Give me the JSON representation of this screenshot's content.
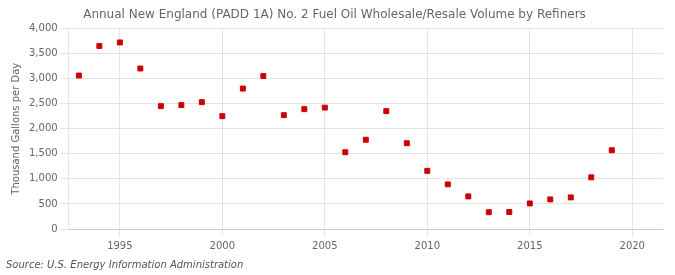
{
  "chart_data": {
    "type": "scatter",
    "title": "Annual New England (PADD 1A) No. 2 Fuel Oil Wholesale/Resale Volume by Refiners",
    "ylabel": "Thousand Gallons per Day",
    "source": "Source: U.S. Energy Information Administration",
    "x": [
      1993,
      1994,
      1995,
      1996,
      1997,
      1998,
      1999,
      2000,
      2001,
      2002,
      2003,
      2004,
      2005,
      2006,
      2007,
      2008,
      2009,
      2010,
      2011,
      2012,
      2013,
      2014,
      2015,
      2016,
      2017,
      2018,
      2019
    ],
    "values": [
      3060,
      3650,
      3720,
      3200,
      2450,
      2470,
      2530,
      2250,
      2800,
      3050,
      2270,
      2390,
      2420,
      1530,
      1780,
      2350,
      1710,
      1160,
      890,
      650,
      335,
      340,
      510,
      590,
      630,
      1030,
      1570
    ],
    "color": "#cc0000",
    "marker": "square",
    "xlim": [
      1992.5,
      2021.5
    ],
    "ylim": [
      0,
      4000
    ],
    "xticks": [
      1995,
      2000,
      2005,
      2010,
      2015,
      2020
    ],
    "yticks": [
      0,
      500,
      {
        "value": 1000,
        "label": "1,000"
      },
      {
        "value": 1500,
        "label": "1,500"
      },
      {
        "value": 2000,
        "label": "2,000"
      },
      {
        "value": 2500,
        "label": "2,500"
      },
      {
        "value": 3000,
        "label": "3,000"
      },
      {
        "value": 3500,
        "label": "3,500"
      },
      {
        "value": 4000,
        "label": "4,000"
      }
    ],
    "grid": true
  }
}
